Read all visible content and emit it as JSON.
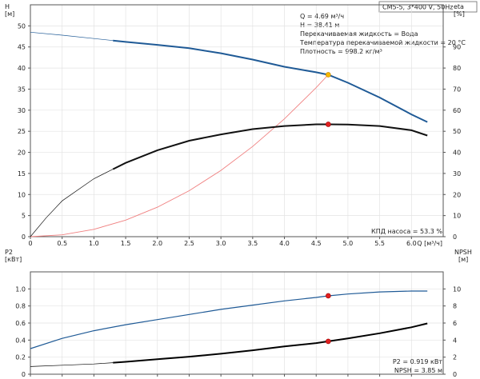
{
  "title_box": "CM5-5, 3*400 V, 50Hz",
  "info_lines": [
    "Q = 4.69 м³/ч",
    "H = 38.41 м",
    "Перекачиваемая жидкость = Вода",
    "Температура перекачиваемой жидкости = 20 °C",
    "Плотность = 998.2 кг/м³"
  ],
  "eff_note": "КПД насоса = 53.3 %",
  "bottom_notes": [
    "P2 = 0.919 кВт",
    "NPSH = 3.85 м"
  ],
  "colors": {
    "head": "#1f5a96",
    "eff": "#111111",
    "system": "#f08080",
    "power": "#1f5a96",
    "npsh": "#000000",
    "dot": "#e02020",
    "dot_head": "#f5b800"
  },
  "chart_data": [
    {
      "type": "line",
      "xlabel": "Q [м³/ч]",
      "x_ticks": [
        0,
        0.5,
        1.0,
        1.5,
        2.0,
        2.5,
        3.0,
        3.5,
        4.0,
        4.5,
        5.0,
        5.5,
        6.0
      ],
      "x_tick_labels": [
        "0",
        "0.5",
        "1.0",
        "1.5",
        "2.0",
        "2.5",
        "3.0",
        "3.5",
        "4.0",
        "4.5",
        "5.0",
        "5.5",
        "6.0"
      ],
      "xlim": [
        0,
        6.5
      ],
      "ylabel_left": "H [м]",
      "ylim_left": [
        0,
        55
      ],
      "y_ticks_left": [
        0,
        5,
        10,
        15,
        20,
        25,
        30,
        35,
        40,
        45,
        50
      ],
      "ylabel_right": "eta [%]",
      "ylim_right": [
        0,
        110
      ],
      "y_ticks_right": [
        0,
        10,
        20,
        30,
        40,
        50,
        60,
        70,
        80,
        90
      ],
      "grid": true,
      "series": [
        {
          "key": "head",
          "axis": "left",
          "x": [
            0,
            0.5,
            1.0,
            1.5,
            2.0,
            2.5,
            3.0,
            3.5,
            4.0,
            4.5,
            4.69,
            5.0,
            5.5,
            6.0,
            6.25
          ],
          "y": [
            48.5,
            47.8,
            47.0,
            46.2,
            45.5,
            44.7,
            43.5,
            42.0,
            40.3,
            39.0,
            38.41,
            36.5,
            33.0,
            29.0,
            27.2
          ],
          "thin_until": 1.3
        },
        {
          "key": "system",
          "axis": "left",
          "x": [
            0,
            0.5,
            1.0,
            1.5,
            2.0,
            2.5,
            3.0,
            3.5,
            4.0,
            4.5,
            4.69
          ],
          "y": [
            0,
            0.44,
            1.75,
            3.93,
            6.99,
            10.91,
            15.72,
            21.39,
            27.94,
            35.36,
            38.41
          ]
        },
        {
          "key": "eff",
          "axis": "right",
          "x": [
            0,
            0.25,
            0.5,
            1.0,
            1.5,
            2.0,
            2.5,
            3.0,
            3.5,
            4.0,
            4.5,
            4.69,
            5.0,
            5.5,
            6.0,
            6.25
          ],
          "y": [
            0,
            9,
            17,
            27.5,
            35,
            41,
            45.5,
            48.5,
            51,
            52.5,
            53.3,
            53.3,
            53.2,
            52.5,
            50.5,
            48
          ],
          "thin_until": 1.3
        }
      ],
      "points": [
        {
          "axis": "left",
          "x": 4.69,
          "y": 38.41,
          "color_key": "dot_head"
        },
        {
          "axis": "right",
          "x": 4.69,
          "y": 53.3,
          "color_key": "dot"
        }
      ]
    },
    {
      "type": "line",
      "x_ticks": [
        0,
        0.5,
        1.0,
        1.5,
        2.0,
        2.5,
        3.0,
        3.5,
        4.0,
        4.5,
        5.0,
        5.5,
        6.0
      ],
      "xlim": [
        0,
        6.5
      ],
      "ylabel_left": "P2 [кВт]",
      "ylim_left": [
        0,
        1.2
      ],
      "y_ticks_left": [
        0,
        0.2,
        0.4,
        0.6,
        0.8,
        1.0
      ],
      "y_tick_labels_left": [
        "0",
        "0.2",
        "0.4",
        "0.6",
        "0.8",
        "1.0"
      ],
      "ylabel_right": "NPSH [м]",
      "ylim_right": [
        0,
        12
      ],
      "y_ticks_right": [
        0,
        2,
        4,
        6,
        8,
        10
      ],
      "grid": true,
      "series": [
        {
          "key": "power",
          "axis": "left",
          "x": [
            0,
            0.5,
            1.0,
            1.5,
            2.0,
            2.5,
            3.0,
            3.5,
            4.0,
            4.5,
            4.69,
            5.0,
            5.5,
            6.0,
            6.25
          ],
          "y": [
            0.3,
            0.42,
            0.51,
            0.58,
            0.64,
            0.7,
            0.76,
            0.81,
            0.86,
            0.9,
            0.919,
            0.94,
            0.965,
            0.975,
            0.975
          ]
        },
        {
          "key": "npsh",
          "axis": "right",
          "x": [
            0,
            0.5,
            1.0,
            1.5,
            2.0,
            2.5,
            3.0,
            3.5,
            4.0,
            4.5,
            4.69,
            5.0,
            5.5,
            6.0,
            6.25
          ],
          "y": [
            0.9,
            1.05,
            1.2,
            1.45,
            1.75,
            2.05,
            2.4,
            2.8,
            3.25,
            3.65,
            3.85,
            4.2,
            4.8,
            5.5,
            5.95
          ],
          "thick_from": 1.3
        }
      ],
      "points": [
        {
          "axis": "left",
          "x": 4.69,
          "y": 0.919,
          "color_key": "dot"
        },
        {
          "axis": "right",
          "x": 4.69,
          "y": 3.85,
          "color_key": "dot"
        }
      ]
    }
  ]
}
